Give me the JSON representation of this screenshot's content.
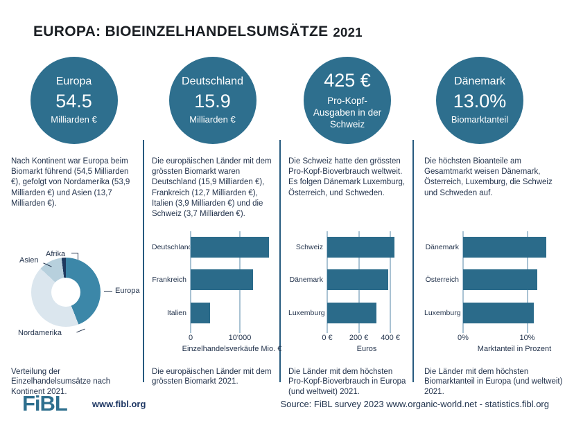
{
  "page_title": {
    "text": "EUROPA: BIOEINZELHANDELSUMSÄTZE",
    "year": "2021"
  },
  "colors": {
    "accent_teal": "#2e6f8e",
    "bar_fill": "#2b6b8a",
    "divider_blue": "#265a7e",
    "gridline": "#a9c2d3",
    "text_navy": "#24344d",
    "pie_europa": "#3c87a8",
    "pie_nordamerika": "#dbe6ee",
    "pie_asien": "#b7d0dd",
    "pie_afrika": "#1e3a5f"
  },
  "columns": [
    {
      "circle": {
        "title": "Europa",
        "value": "54.5",
        "unit": "Milliarden €"
      },
      "paragraph": "Nach Kontinent war Europa beim Biomarkt führend (54,5 Milliarden €), gefolgt von Nordamerika (53,9 Milliarden €) und Asien (13,7 Milliarden €).",
      "caption": "Verteilung der Einzelhandelsumsätze nach Kontinent 2021."
    },
    {
      "circle": {
        "title": "Deutschland",
        "value": "15.9",
        "unit": "Milliarden €"
      },
      "paragraph": "Die europäischen Länder mit dem grössten Biomarkt waren Deutschland (15,9 Milliarden €), Frankreich (12,7 Milliarden €), Italien (3,9 Milliarden €) und die Schweiz (3,7 Milliarden €).",
      "caption": "Die europäischen Länder mit dem grössten Biomarkt 2021."
    },
    {
      "circle": {
        "value": "425 €",
        "subtitle": "Pro-Kopf-Ausgaben in der Schweiz"
      },
      "paragraph": "Die Schweiz hatte den grössten Pro-Kopf-Bioverbrauch weltweit. Es folgen Dänemark Luxemburg, Österreich, und Schweden.",
      "caption": "Die Länder mit dem höchsten Pro-Kopf-Bioverbrauch in Europa (und weltweit) 2021."
    },
    {
      "circle": {
        "title": "Dänemark",
        "value": "13.0%",
        "unit": "Biomarktanteil"
      },
      "paragraph": "Die höchsten Bioanteile am Gesamtmarkt weisen Dänemark, Österreich, Luxemburg, die Schweiz und Schweden auf.",
      "caption": "Die Länder mit dem höchsten Biomarktanteil in Europa (und weltweit) 2021."
    }
  ],
  "chart_data": [
    {
      "type": "pie",
      "donut": true,
      "title": "Verteilung der Einzelhandelsumsätze nach Kontinent 2021",
      "labels": [
        "Europa",
        "Nordamerika",
        "Asien",
        "Afrika"
      ],
      "share_percent": [
        44,
        43,
        11,
        2
      ],
      "values_billion_eur": [
        54.5,
        53.9,
        13.7,
        null
      ]
    },
    {
      "type": "bar",
      "orientation": "horizontal",
      "categories": [
        "Deutschland",
        "Frankreich",
        "Italien"
      ],
      "values": [
        15900,
        12700,
        3900
      ],
      "xlabel": "Einzelhandelsverkäufe Mio. €",
      "xmax": 16750,
      "ticks": [
        {
          "value": 0,
          "label": "0"
        },
        {
          "value": 10000,
          "label": "10'000"
        }
      ]
    },
    {
      "type": "bar",
      "orientation": "horizontal",
      "categories": [
        "Schweiz",
        "Dänemark",
        "Luxemburg"
      ],
      "values": [
        425,
        384,
        313
      ],
      "xlabel": "Euros",
      "xmax": 500,
      "ticks": [
        {
          "value": 0,
          "label": "0 €"
        },
        {
          "value": 200,
          "label": "200 €"
        },
        {
          "value": 400,
          "label": "400 €"
        }
      ]
    },
    {
      "type": "bar",
      "orientation": "horizontal",
      "categories": [
        "Dänemark",
        "Österreich",
        "Luxemburg"
      ],
      "values": [
        13.0,
        11.6,
        11.0
      ],
      "xlabel": "Marktanteil in Prozent",
      "xmax": 16,
      "ticks": [
        {
          "value": 0,
          "label": "0%"
        },
        {
          "value": 10,
          "label": "10%"
        }
      ]
    }
  ],
  "footer": {
    "logo_text": "FiBL",
    "website": "www.fibl.org",
    "source": "Source: FiBL survey 2023 www.organic-world.net - statistics.fibl.org"
  }
}
